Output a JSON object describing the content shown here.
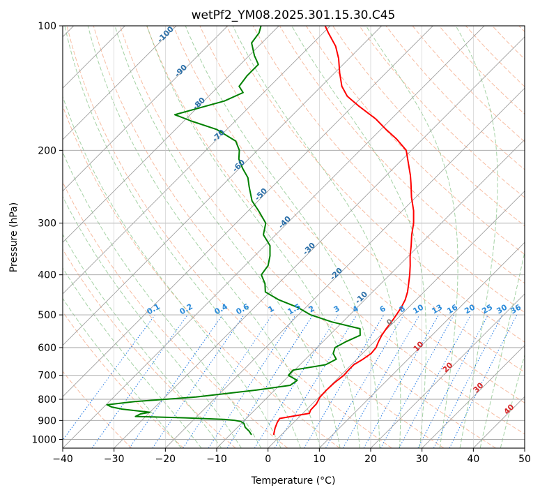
{
  "chart_data": {
    "type": "line",
    "title": "wetPf2_YM08.2025.301.15.30.C45",
    "xlabel": "Temperature (°C)",
    "ylabel": "Pressure (hPa)",
    "xlim": [
      -40,
      50
    ],
    "ylim": [
      1050,
      100
    ],
    "yscale": "log",
    "x_ticks": [
      -40,
      -30,
      -20,
      -10,
      0,
      10,
      20,
      30,
      40,
      50
    ],
    "y_ticks": [
      100,
      200,
      300,
      400,
      500,
      600,
      700,
      800,
      900,
      1000
    ],
    "grid": true,
    "skew": true,
    "series": [
      {
        "color": "#ff0000",
        "points": [
          [
            -1.5,
            975
          ],
          [
            -2.5,
            940
          ],
          [
            -3.2,
            910
          ],
          [
            -3.5,
            890
          ],
          [
            1.3,
            865
          ],
          [
            0.9,
            850
          ],
          [
            0.8,
            820
          ],
          [
            0.2,
            790
          ],
          [
            0.1,
            760
          ],
          [
            0.2,
            730
          ],
          [
            0.6,
            700
          ],
          [
            0.5,
            680
          ],
          [
            0.5,
            660
          ],
          [
            1.2,
            640
          ],
          [
            1.7,
            620
          ],
          [
            1.5,
            600
          ],
          [
            0.8,
            580
          ],
          [
            0.2,
            560
          ],
          [
            -0.2,
            540
          ],
          [
            -0.5,
            520
          ],
          [
            -0.9,
            500
          ],
          [
            -1.4,
            480
          ],
          [
            -2.1,
            460
          ],
          [
            -3.2,
            440
          ],
          [
            -4.6,
            420
          ],
          [
            -6.1,
            400
          ],
          [
            -7.8,
            380
          ],
          [
            -9.7,
            360
          ],
          [
            -11.5,
            340
          ],
          [
            -13.5,
            320
          ],
          [
            -15.4,
            300
          ],
          [
            -17.8,
            280
          ],
          [
            -20.8,
            260
          ],
          [
            -23.7,
            240
          ],
          [
            -25.3,
            230
          ],
          [
            -29.0,
            210
          ],
          [
            -31.0,
            200
          ],
          [
            -35.0,
            188
          ],
          [
            -39.0,
            178
          ],
          [
            -43.0,
            168
          ],
          [
            -49.0,
            156
          ],
          [
            -53.0,
            148
          ],
          [
            -56.0,
            140
          ],
          [
            -59.0,
            130
          ],
          [
            -62.0,
            120
          ],
          [
            -65.0,
            112
          ],
          [
            -69.0,
            104
          ],
          [
            -71.0,
            100
          ]
        ]
      },
      {
        "color": "#008000",
        "points": [
          [
            -5.8,
            975
          ],
          [
            -7.0,
            955
          ],
          [
            -8.5,
            935
          ],
          [
            -9.5,
            915
          ],
          [
            -10.5,
            905
          ],
          [
            -11.8,
            900
          ],
          [
            -14.0,
            895
          ],
          [
            -22.0,
            887
          ],
          [
            -32.0,
            880
          ],
          [
            -31.5,
            868
          ],
          [
            -30.0,
            860
          ],
          [
            -36.0,
            845
          ],
          [
            -38.5,
            835
          ],
          [
            -39.8,
            825
          ],
          [
            -35.0,
            810
          ],
          [
            -24.0,
            790
          ],
          [
            -13.5,
            760
          ],
          [
            -7.9,
            740
          ],
          [
            -7.5,
            720
          ],
          [
            -10.2,
            700
          ],
          [
            -10.3,
            680
          ],
          [
            -5.0,
            660
          ],
          [
            -4.0,
            640
          ],
          [
            -5.7,
            620
          ],
          [
            -6.5,
            600
          ],
          [
            -5.5,
            580
          ],
          [
            -4.0,
            560
          ],
          [
            -5.3,
            540
          ],
          [
            -12.1,
            520
          ],
          [
            -17.6,
            500
          ],
          [
            -21.5,
            480
          ],
          [
            -26.7,
            460
          ],
          [
            -30.9,
            440
          ],
          [
            -32.6,
            420
          ],
          [
            -35.0,
            400
          ],
          [
            -35.5,
            380
          ],
          [
            -37.0,
            360
          ],
          [
            -39.0,
            340
          ],
          [
            -42.4,
            320
          ],
          [
            -44.2,
            300
          ],
          [
            -48.0,
            280
          ],
          [
            -51.2,
            265
          ],
          [
            -52.5,
            257
          ],
          [
            -54.5,
            245
          ],
          [
            -56.5,
            233
          ],
          [
            -59.4,
            221
          ],
          [
            -61.9,
            210
          ],
          [
            -63.5,
            200
          ],
          [
            -66.0,
            190
          ],
          [
            -72.0,
            178
          ],
          [
            -78.5,
            170
          ],
          [
            -83.0,
            164
          ],
          [
            -76.0,
            152
          ],
          [
            -74.0,
            145
          ],
          [
            -76.0,
            140
          ],
          [
            -76.5,
            132
          ],
          [
            -76.5,
            124
          ],
          [
            -79.0,
            118
          ],
          [
            -82.0,
            110
          ],
          [
            -82.5,
            104
          ],
          [
            -83.5,
            100
          ]
        ]
      }
    ],
    "isotherm_labels": [
      "-100",
      "-90",
      "-80",
      "-70",
      "-60",
      "-50",
      "-40",
      "-30",
      "-20",
      "-10"
    ],
    "mixing_ratio_labels": [
      "0.1",
      "0.2",
      "0.4",
      "0.6",
      "1",
      "1.5",
      "2",
      "3",
      "4",
      "6",
      "8",
      "10",
      "13",
      "16",
      "20",
      "25",
      "30",
      "36"
    ],
    "moist_adiabat_labels": [
      "0",
      "10",
      "20",
      "30",
      "40"
    ]
  }
}
